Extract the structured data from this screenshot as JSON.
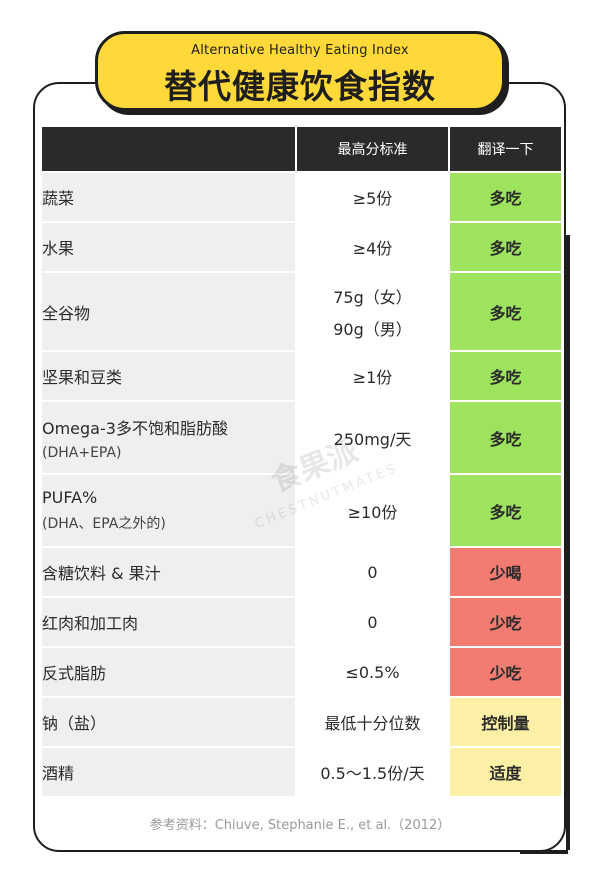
{
  "title": {
    "english": "Alternative Healthy Eating Index",
    "chinese": "替代健康饮食指数"
  },
  "table": {
    "headers": [
      "",
      "最高分标准",
      "翻译一下"
    ],
    "rows": [
      {
        "food": "蔬菜",
        "food_sub": "",
        "standard_line1": "≥5份",
        "standard_line2": "",
        "verdict": "多吃",
        "verdict_type": "more"
      },
      {
        "food": "水果",
        "food_sub": "",
        "standard_line1": "≥4份",
        "standard_line2": "",
        "verdict": "多吃",
        "verdict_type": "more"
      },
      {
        "food": "全谷物",
        "food_sub": "",
        "standard_line1": "75g（女）",
        "standard_line2": "90g（男）",
        "verdict": "多吃",
        "verdict_type": "more"
      },
      {
        "food": "坚果和豆类",
        "food_sub": "",
        "standard_line1": "≥1份",
        "standard_line2": "",
        "verdict": "多吃",
        "verdict_type": "more"
      },
      {
        "food": "Omega-3多不饱和脂肪酸",
        "food_sub": "(DHA+EPA)",
        "standard_line1": "250mg/天",
        "standard_line2": "",
        "verdict": "多吃",
        "verdict_type": "more"
      },
      {
        "food": "PUFA%",
        "food_sub": "(DHA、EPA之外的)",
        "standard_line1": "≥10份",
        "standard_line2": "",
        "verdict": "多吃",
        "verdict_type": "more"
      },
      {
        "food": "含糖饮料 & 果汁",
        "food_sub": "",
        "standard_line1": "0",
        "standard_line2": "",
        "verdict": "少喝",
        "verdict_type": "less"
      },
      {
        "food": "红肉和加工肉",
        "food_sub": "",
        "standard_line1": "0",
        "standard_line2": "",
        "verdict": "少吃",
        "verdict_type": "less"
      },
      {
        "food": "反式脂肪",
        "food_sub": "",
        "standard_line1": "≤0.5%",
        "standard_line2": "",
        "verdict": "少吃",
        "verdict_type": "less"
      },
      {
        "food": "钠（盐）",
        "food_sub": "",
        "standard_line1": "最低十分位数",
        "standard_line2": "",
        "verdict": "控制量",
        "verdict_type": "control"
      },
      {
        "food": "酒精",
        "food_sub": "",
        "standard_line1": "0.5～1.5份/天",
        "standard_line2": "",
        "verdict": "适度",
        "verdict_type": "control"
      }
    ]
  },
  "reference": "参考资料：Chiuve, Stephanie E., et al.（2012）",
  "watermark": {
    "chinese": "食果派",
    "english": "CHESTNUTMATES"
  },
  "colors": {
    "more": "#9ee35e",
    "less": "#f27b72",
    "control": "#fbf0a5",
    "header": "#2a2a2a",
    "badge": "#ffd93a"
  }
}
